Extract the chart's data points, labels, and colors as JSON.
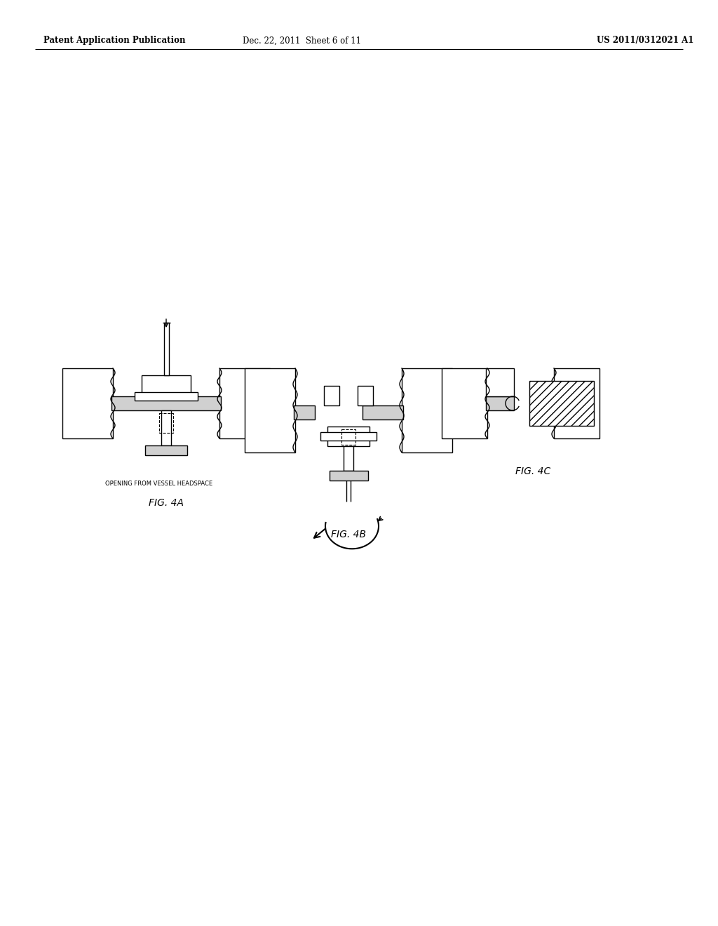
{
  "header_left": "Patent Application Publication",
  "header_middle": "Dec. 22, 2011  Sheet 6 of 11",
  "header_right": "US 2011/0312021 A1",
  "fig4a_label": "FIG. 4A",
  "fig4b_label": "FIG. 4B",
  "fig4c_label": "FIG. 4C",
  "annotation_4a": "OPENING FROM VESSEL HEADSPACE",
  "bg_color": "#ffffff",
  "line_color": "#000000"
}
